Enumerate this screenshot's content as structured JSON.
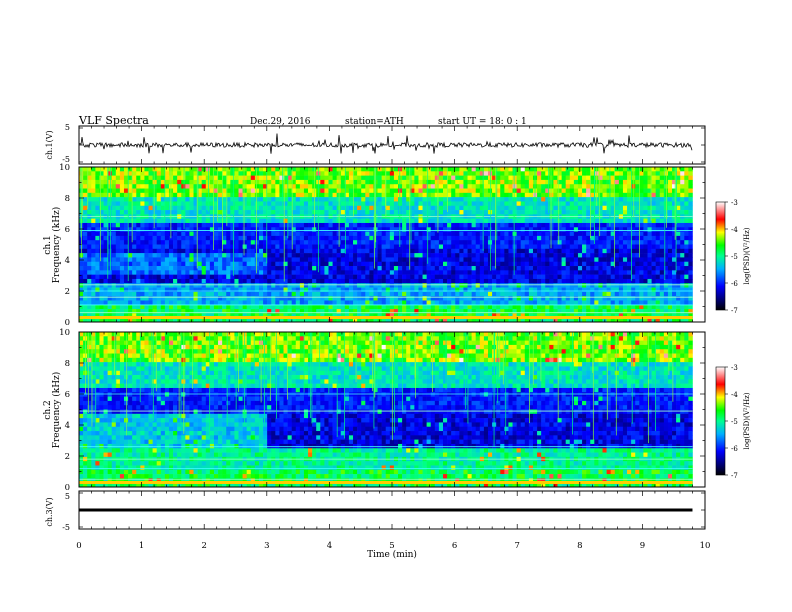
{
  "header": {
    "title": "VLF  Spectra",
    "date": "Dec.29, 2016",
    "station": "station=ATH",
    "start_time": "start  UT  =   18: 0  : 1"
  },
  "chart_data": [
    {
      "type": "line",
      "ylabel": "ch.1(V)",
      "yticks": [
        "5",
        "-5"
      ],
      "ylim": [
        -5,
        5
      ],
      "xlim": [
        0,
        10
      ],
      "note": "noisy trace near 0 V with many spikes"
    },
    {
      "type": "heatmap",
      "ylabel_channel": "ch.1",
      "ylabel": "Frequency  (kHz)",
      "yticks": [
        "0",
        "2",
        "4",
        "6",
        "8",
        "10"
      ],
      "ylim": [
        0,
        10
      ],
      "xlim": [
        0,
        10
      ],
      "data_end_min": 9.8,
      "colorbar": {
        "label": "log(PSD)(V²/Hz)",
        "ticks": [
          "-3",
          "-4",
          "-5",
          "-6",
          "-7"
        ],
        "range": [
          -7,
          -3
        ]
      }
    },
    {
      "type": "heatmap",
      "ylabel_channel": "ch.2",
      "ylabel": "Frequency  (kHz)",
      "yticks": [
        "0",
        "2",
        "4",
        "6",
        "8",
        "10"
      ],
      "ylim": [
        0,
        10
      ],
      "xlim": [
        0,
        10
      ],
      "data_end_min": 9.8,
      "colorbar": {
        "label": "log(PSD)(V²/Hz)",
        "ticks": [
          "-3",
          "-4",
          "-5",
          "-6",
          "-7"
        ],
        "range": [
          -7,
          -3
        ]
      }
    },
    {
      "type": "line",
      "ylabel": "ch.3(V)",
      "yticks": [
        "5",
        "-5"
      ],
      "ylim": [
        -5,
        5
      ],
      "xlim": [
        0,
        10
      ],
      "level_v": 0,
      "note": "flat trace at 0 V"
    }
  ],
  "x_axis": {
    "label": "Time  (min)",
    "ticks": [
      "0",
      "1",
      "2",
      "3",
      "4",
      "5",
      "6",
      "7",
      "8",
      "9",
      "10"
    ]
  }
}
